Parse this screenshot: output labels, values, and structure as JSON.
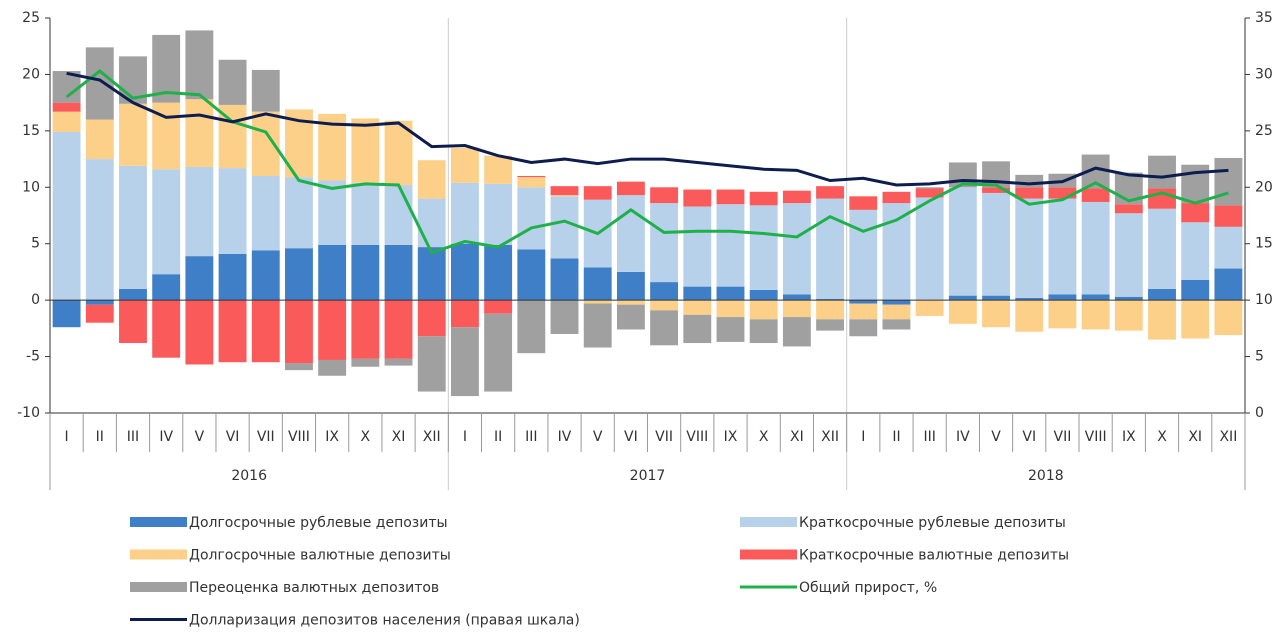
{
  "chart_data": {
    "type": "bar",
    "categories": [
      "I",
      "II",
      "III",
      "IV",
      "V",
      "VI",
      "VII",
      "VIII",
      "IX",
      "X",
      "XI",
      "XII",
      "I",
      "II",
      "III",
      "IV",
      "V",
      "VI",
      "VII",
      "VIII",
      "IX",
      "X",
      "XI",
      "XII",
      "I",
      "II",
      "III",
      "IV",
      "V",
      "VI",
      "VII",
      "VIII",
      "IX",
      "X",
      "XI",
      "XII"
    ],
    "x_groups": [
      "2016",
      "2017",
      "2018"
    ],
    "ylim": [
      -10,
      25
    ],
    "yticks": [
      -10,
      -5,
      0,
      5,
      10,
      15,
      20,
      25
    ],
    "y2lim": [
      0,
      35
    ],
    "y2ticks": [
      0,
      5,
      10,
      15,
      20,
      25,
      30,
      35
    ],
    "stacked": true,
    "series": [
      {
        "name": "Долгосрочные рублевые депозиты",
        "color": "#3f7fc8",
        "values": [
          -2.4,
          -0.4,
          1.0,
          2.3,
          3.9,
          4.1,
          4.4,
          4.6,
          4.9,
          4.9,
          4.9,
          4.7,
          5.0,
          4.9,
          4.5,
          3.7,
          2.9,
          2.5,
          1.6,
          1.2,
          1.2,
          0.9,
          0.5,
          0.1,
          -0.3,
          -0.4,
          0.0,
          0.4,
          0.4,
          0.2,
          0.5,
          0.5,
          0.3,
          1.0,
          1.8,
          2.8
        ]
      },
      {
        "name": "Краткосрочные рублевые депозиты",
        "color": "#b8d1ea",
        "values": [
          14.9,
          12.5,
          10.9,
          9.3,
          7.9,
          7.6,
          6.6,
          6.3,
          5.7,
          5.5,
          5.3,
          4.3,
          5.4,
          5.4,
          5.5,
          5.5,
          6.0,
          6.8,
          7.0,
          7.1,
          7.3,
          7.5,
          8.1,
          8.9,
          8.0,
          8.6,
          9.1,
          9.6,
          9.1,
          8.8,
          8.5,
          8.2,
          7.4,
          7.1,
          5.1,
          3.7
        ]
      },
      {
        "name": "Долгосрочные валютные депозиты",
        "color": "#fdd08a",
        "values": [
          1.8,
          3.5,
          5.5,
          5.9,
          6.0,
          5.6,
          5.7,
          6.0,
          5.9,
          5.7,
          5.7,
          3.4,
          3.1,
          2.5,
          0.9,
          0.1,
          -0.3,
          -0.4,
          -0.9,
          -1.3,
          -1.5,
          -1.7,
          -1.5,
          -1.7,
          -1.4,
          -1.3,
          -1.4,
          -2.1,
          -2.4,
          -2.8,
          -2.5,
          -2.6,
          -2.7,
          -3.5,
          -3.4,
          -3.1
        ]
      },
      {
        "name": "Краткосрочные валютные депозиты",
        "color": "#fa5a5a",
        "values": [
          0.8,
          -1.6,
          -3.8,
          -5.1,
          -5.7,
          -5.5,
          -5.5,
          -5.6,
          -5.3,
          -5.2,
          -5.2,
          -3.2,
          -2.4,
          -1.2,
          0.1,
          0.8,
          1.2,
          1.2,
          1.4,
          1.5,
          1.3,
          1.2,
          1.1,
          1.1,
          1.2,
          1.0,
          0.8,
          0.0,
          0.5,
          1.0,
          1.0,
          1.2,
          0.8,
          1.8,
          1.7,
          1.9
        ]
      },
      {
        "name": "Переоценка валютных депозитов",
        "color": "#a0a0a0",
        "values": [
          2.8,
          6.4,
          4.2,
          6.0,
          6.1,
          4.0,
          3.7,
          -0.6,
          -1.4,
          -0.7,
          -0.6,
          -4.9,
          -6.1,
          -6.9,
          -4.7,
          -3.0,
          -3.9,
          -2.2,
          -3.1,
          -2.5,
          -2.2,
          -2.1,
          -2.6,
          -1.0,
          -1.5,
          -0.9,
          0.1,
          2.2,
          2.3,
          1.1,
          1.2,
          3.0,
          2.8,
          2.9,
          3.4,
          4.2
        ]
      },
      {
        "name": "Общий прирост, %",
        "type": "line",
        "color": "#1fb04a",
        "values": [
          18.0,
          20.3,
          17.9,
          18.4,
          18.2,
          15.8,
          14.9,
          10.6,
          9.9,
          10.3,
          10.2,
          4.2,
          5.2,
          4.7,
          6.4,
          7.0,
          5.9,
          8.0,
          6.0,
          6.1,
          6.1,
          5.9,
          5.6,
          7.4,
          6.1,
          7.1,
          8.8,
          10.3,
          10.2,
          8.5,
          8.9,
          10.4,
          8.8,
          9.5,
          8.6,
          9.5
        ]
      },
      {
        "name": "Долларизация депозитов населения (правая шкала)",
        "type": "line",
        "axis": "y2",
        "color": "#0d1d4f",
        "values": [
          30.1,
          29.5,
          27.5,
          26.2,
          26.4,
          25.8,
          26.5,
          25.9,
          25.6,
          25.5,
          25.7,
          23.6,
          23.7,
          22.8,
          22.2,
          22.5,
          22.1,
          22.5,
          22.5,
          22.2,
          21.9,
          21.6,
          21.5,
          20.6,
          20.8,
          20.2,
          20.3,
          20.6,
          20.5,
          20.3,
          20.5,
          21.7,
          21.1,
          20.9,
          21.3,
          21.5
        ]
      }
    ]
  }
}
